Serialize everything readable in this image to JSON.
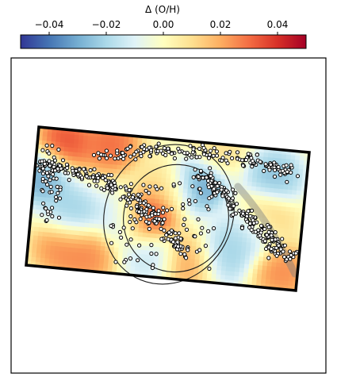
{
  "chart_data": {
    "type": "heatmap",
    "description_scale": "diverging",
    "colorbar": {
      "label": "Δ (O/H)",
      "ticks": [
        -0.04,
        -0.02,
        0.0,
        0.02,
        0.04
      ],
      "tick_labels": [
        "−0.04",
        "−0.02",
        "0.00",
        "0.02",
        "0.04"
      ],
      "range": [
        -0.05,
        0.05
      ],
      "placement": "top",
      "colormap": "RdYlBu_r",
      "colors": [
        "#313695",
        "#4575b4",
        "#74add1",
        "#abd9e9",
        "#e0f3f8",
        "#ffffbf",
        "#fee090",
        "#fdae61",
        "#f46d43",
        "#d73027",
        "#a50026"
      ]
    },
    "axes": {
      "ticks_visible": false,
      "grid": false
    },
    "map": {
      "rotation_deg": -5,
      "hotspots": [
        {
          "x": 0.1,
          "y": 0.1,
          "value": 0.035
        },
        {
          "x": 0.42,
          "y": 0.58,
          "value": 0.045
        },
        {
          "x": 0.27,
          "y": 0.08,
          "value": 0.03
        },
        {
          "x": 0.22,
          "y": 0.9,
          "value": 0.025
        },
        {
          "x": 0.12,
          "y": 0.85,
          "value": 0.025
        },
        {
          "x": 0.5,
          "y": 0.35,
          "value": 0.012
        },
        {
          "x": 0.6,
          "y": 0.87,
          "value": 0.022
        },
        {
          "x": 0.86,
          "y": 0.5,
          "value": 0.015
        },
        {
          "x": 0.94,
          "y": 0.88,
          "value": 0.025
        },
        {
          "x": 0.66,
          "y": 0.05,
          "value": 0.01
        },
        {
          "x": 0.03,
          "y": 0.35,
          "value": -0.03
        },
        {
          "x": 0.6,
          "y": 0.3,
          "value": -0.035
        },
        {
          "x": 0.15,
          "y": 0.6,
          "value": -0.022
        },
        {
          "x": 0.35,
          "y": 0.6,
          "value": -0.018
        },
        {
          "x": 0.72,
          "y": 0.8,
          "value": -0.022
        },
        {
          "x": 0.88,
          "y": 0.2,
          "value": -0.025
        },
        {
          "x": 0.8,
          "y": 0.62,
          "value": -0.02
        },
        {
          "x": 0.45,
          "y": 0.85,
          "value": -0.015
        }
      ]
    }
  },
  "colors": {
    "frame": "#000000",
    "marker_edge": "#000000",
    "marker_face": "#ffffff",
    "ellipse": "#1a1a1a",
    "spiral_arm_overlay": "#7f7f7f"
  }
}
